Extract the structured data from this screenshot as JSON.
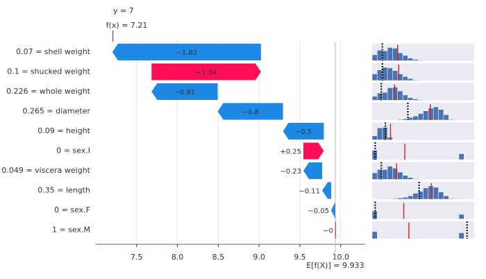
{
  "chart_data": {
    "type": "waterfall",
    "target_label": "y = 7",
    "fx": {
      "value": 7.21,
      "label": "f(x) = 7.21"
    },
    "base_value": {
      "value": 9.933,
      "label": "E[f(X)] = 9.933"
    },
    "categories": [
      "0.07 = shell weight",
      "0.1 = shucked weight",
      "0.226 = whole weight",
      "0.265 = diameter",
      "0.09 = height",
      "0 = sex.I",
      "0.049 = viscera weight",
      "0.35 = length",
      "0 = sex.F",
      "1 = sex.M"
    ],
    "values": [
      -1.82,
      1.34,
      -0.81,
      -0.8,
      -0.5,
      0.25,
      -0.23,
      -0.11,
      -0.05,
      0
    ],
    "value_labels": [
      "−1.82",
      "+1.34",
      "−0.81",
      "−0.8",
      "−0.5",
      "+0.25",
      "−0.23",
      "−0.11",
      "−0.05",
      "−0"
    ],
    "positive_color": "#ff0d57",
    "negative_color": "#1e88e5",
    "xlim": [
      7.0,
      10.3
    ],
    "xticks": [
      7.5,
      {
        "value": 8,
        "label": "8.0"
      },
      8.5,
      {
        "value": 9,
        "label": "9.0"
      },
      9.5,
      {
        "value": 10,
        "label": "10.0"
      }
    ],
    "grid": true,
    "dist_xlim": [
      0,
      100
    ],
    "dist_color": "#4c72b0",
    "marker_color": "#d62728",
    "distributions": [
      {
        "counts": [
          0.45,
          0.8,
          0.75,
          1,
          0.95,
          0.6,
          0.4,
          0.2,
          0.1,
          0.05,
          0,
          0,
          0,
          0,
          0,
          0,
          0,
          0,
          0,
          0
        ],
        "marker": 25,
        "ref": 10
      },
      {
        "counts": [
          0.5,
          0.8,
          1,
          0.95,
          0.75,
          0.5,
          0.3,
          0.15,
          0.05,
          0,
          0,
          0,
          0,
          0,
          0,
          0,
          0,
          0,
          0,
          0
        ],
        "marker": 26,
        "ref": 10
      },
      {
        "counts": [
          0.3,
          0.55,
          0.6,
          0.95,
          1,
          0.7,
          0.4,
          0.2,
          0.1,
          0.05,
          0,
          0,
          0,
          0,
          0,
          0,
          0,
          0,
          0,
          0
        ],
        "marker": 22,
        "ref": 9
      },
      {
        "counts": [
          0,
          0,
          0,
          0,
          0,
          0.05,
          0.1,
          0.2,
          0.3,
          0.5,
          0.7,
          0.9,
          1,
          0.8,
          0.4,
          0.05,
          0,
          0,
          0,
          0
        ],
        "marker": 57,
        "ref": 35
      },
      {
        "counts": [
          0.3,
          0.9,
          0.95,
          0.2,
          0,
          0,
          0,
          0,
          0,
          0,
          0,
          0,
          0,
          0,
          0,
          0,
          0,
          0,
          0,
          0
        ],
        "marker": 18,
        "ref": 13
      },
      {
        "counts": [
          0.7,
          0,
          0,
          0,
          0,
          0,
          0,
          0,
          0,
          0,
          0,
          0,
          0,
          0,
          0,
          0,
          0,
          0.45,
          0,
          0
        ],
        "marker": 32,
        "ref": 3
      },
      {
        "counts": [
          0.5,
          0.75,
          0.75,
          1,
          0.85,
          0.55,
          0.3,
          0.15,
          0.05,
          0,
          0,
          0,
          0,
          0,
          0,
          0,
          0,
          0,
          0,
          0
        ],
        "marker": 24,
        "ref": 9
      },
      {
        "counts": [
          0,
          0,
          0,
          0,
          0.05,
          0.1,
          0.15,
          0.25,
          0.45,
          0.6,
          0.85,
          1,
          0.9,
          0.55,
          0.25,
          0.05,
          0,
          0,
          0,
          0
        ],
        "marker": 58,
        "ref": 46
      },
      {
        "counts": [
          0.6,
          0,
          0,
          0,
          0,
          0,
          0,
          0,
          0,
          0,
          0,
          0,
          0,
          0,
          0,
          0,
          0,
          0.35,
          0,
          0
        ],
        "marker": 31,
        "ref": 3
      },
      {
        "counts": [
          0.55,
          0,
          0,
          0,
          0,
          0,
          0,
          0,
          0,
          0,
          0,
          0,
          0,
          0,
          0,
          0,
          0,
          0.45,
          0,
          0
        ],
        "marker": 36,
        "ref": 93
      }
    ]
  }
}
